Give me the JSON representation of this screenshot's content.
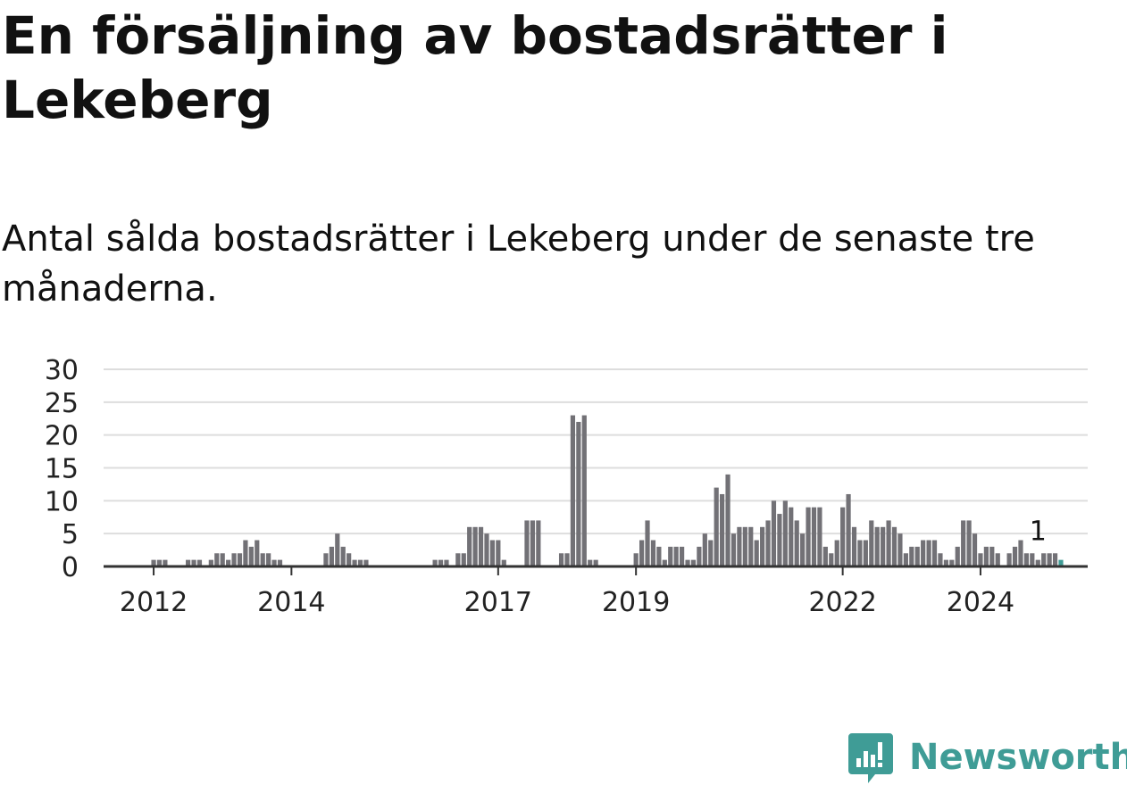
{
  "title": "En försäljning av bostadsrätter i Lekeberg",
  "subtitle": "Antal sålda bostadsrätter i Lekeberg under de senaste tre månaderna.",
  "brand": {
    "name": "Newsworthy",
    "icon": "newsworthy-logo-icon",
    "color": "#3f9c96"
  },
  "chart_data": {
    "type": "bar",
    "title": "",
    "xlabel": "",
    "ylabel": "",
    "ylim": [
      0,
      30
    ],
    "yticks": [
      "0",
      "5",
      "10",
      "15",
      "20",
      "25",
      "30"
    ],
    "grid": true,
    "bar_color": "#727176",
    "highlight_color": "#3f9c96",
    "x_ticks": [
      {
        "label": "2012",
        "index": 8
      },
      {
        "label": "2014",
        "index": 32
      },
      {
        "label": "2017",
        "index": 68
      },
      {
        "label": "2019",
        "index": 92
      },
      {
        "label": "2022",
        "index": 128
      },
      {
        "label": "2024",
        "index": 152
      }
    ],
    "annotation": {
      "label": "1",
      "index": 162
    },
    "values": [
      0,
      0,
      0,
      0,
      0,
      0,
      0,
      0,
      1,
      1,
      1,
      0,
      0,
      0,
      1,
      1,
      1,
      0,
      1,
      2,
      2,
      1,
      2,
      2,
      4,
      3,
      4,
      2,
      2,
      1,
      1,
      0,
      0,
      0,
      0,
      0,
      0,
      0,
      2,
      3,
      5,
      3,
      2,
      1,
      1,
      1,
      0,
      0,
      0,
      0,
      0,
      0,
      0,
      0,
      0,
      0,
      0,
      1,
      1,
      1,
      0,
      2,
      2,
      6,
      6,
      6,
      5,
      4,
      4,
      1,
      0,
      0,
      0,
      7,
      7,
      7,
      0,
      0,
      0,
      2,
      2,
      23,
      22,
      23,
      1,
      1,
      0,
      0,
      0,
      0,
      0,
      0,
      2,
      4,
      7,
      4,
      3,
      1,
      3,
      3,
      3,
      1,
      1,
      3,
      5,
      4,
      12,
      11,
      14,
      5,
      6,
      6,
      6,
      4,
      6,
      7,
      10,
      8,
      10,
      9,
      7,
      5,
      9,
      9,
      9,
      3,
      2,
      4,
      9,
      11,
      6,
      4,
      4,
      7,
      6,
      6,
      7,
      6,
      5,
      2,
      3,
      3,
      4,
      4,
      4,
      2,
      1,
      1,
      3,
      7,
      7,
      5,
      2,
      3,
      3,
      2,
      0,
      2,
      3,
      4,
      2,
      2,
      1,
      2,
      2,
      2,
      1
    ]
  }
}
